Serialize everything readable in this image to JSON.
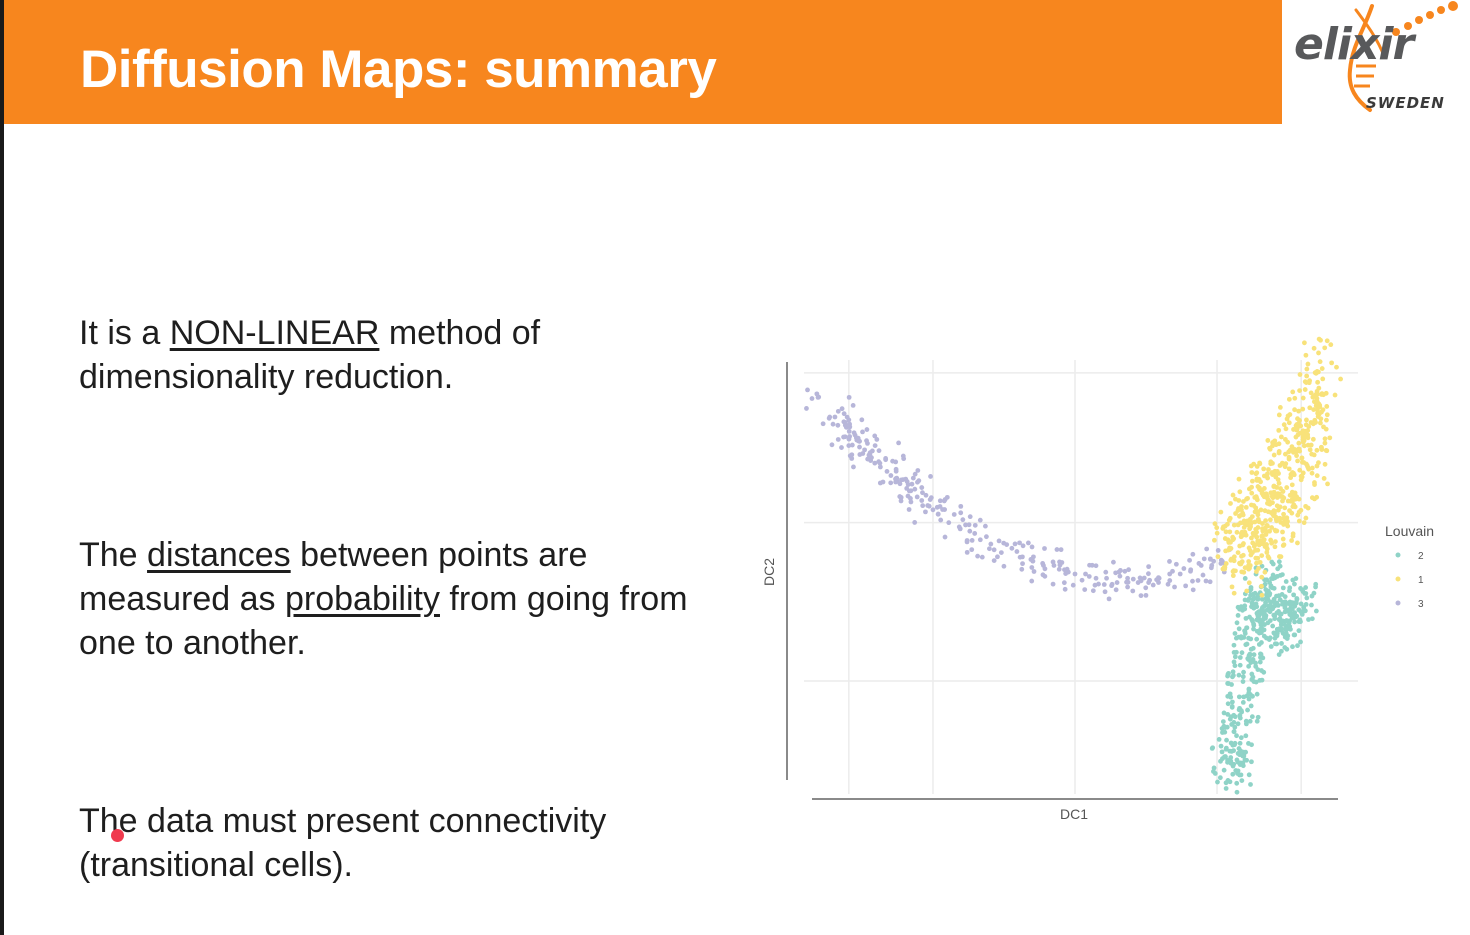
{
  "slide": {
    "title": "Diffusion Maps: summary",
    "logo": {
      "word": "elixir",
      "sub": "SWEDEN",
      "color": "#f7861e"
    },
    "accent_color": "#f7861e"
  },
  "bullets": [
    {
      "pre": "It is a ",
      "u": "NON-LINEAR",
      "post": " method of dimensionality reduction."
    },
    {
      "pre": "The ",
      "u": "distances",
      "mid": " between points are measured as ",
      "u2": "probability",
      "post": " from going from one to another."
    },
    {
      "text": "The data must present connectivity (transitional cells)."
    }
  ],
  "chart_data": {
    "type": "scatter",
    "title": "",
    "xlabel": "DC1",
    "ylabel": "DC2",
    "xlim": [
      0,
      1
    ],
    "ylim": [
      0,
      1
    ],
    "grid": true,
    "legend": {
      "title": "Louvain",
      "placement": "right",
      "entries": [
        {
          "name": "2",
          "color": "#8fd3c7"
        },
        {
          "name": "1",
          "color": "#f8e27a"
        },
        {
          "name": "3",
          "color": "#b7b6d9"
        }
      ]
    },
    "series": [
      {
        "name": "3",
        "color": "#b7b6d9",
        "approx_count": 290,
        "x": [
          0.0,
          0.04,
          0.05,
          0.06,
          0.07,
          0.07,
          0.08,
          0.09,
          0.1,
          0.11,
          0.12,
          0.13,
          0.14,
          0.15,
          0.16,
          0.17,
          0.18,
          0.19,
          0.2,
          0.21,
          0.22,
          0.23,
          0.24,
          0.26,
          0.28,
          0.3,
          0.32,
          0.34,
          0.36,
          0.38,
          0.4,
          0.42,
          0.44,
          0.46,
          0.48,
          0.5,
          0.52,
          0.54,
          0.56,
          0.58,
          0.6,
          0.62,
          0.64,
          0.66,
          0.68,
          0.7,
          0.72,
          0.74,
          0.76,
          0.78
        ],
        "y": [
          0.91,
          0.85,
          0.88,
          0.82,
          0.86,
          0.8,
          0.83,
          0.81,
          0.79,
          0.78,
          0.8,
          0.75,
          0.77,
          0.73,
          0.74,
          0.72,
          0.7,
          0.71,
          0.68,
          0.69,
          0.66,
          0.65,
          0.64,
          0.62,
          0.61,
          0.6,
          0.58,
          0.57,
          0.55,
          0.56,
          0.54,
          0.53,
          0.52,
          0.52,
          0.51,
          0.5,
          0.5,
          0.49,
          0.49,
          0.48,
          0.49,
          0.48,
          0.48,
          0.49,
          0.5,
          0.5,
          0.51,
          0.52,
          0.52,
          0.53
        ]
      },
      {
        "name": "1",
        "color": "#f8e27a",
        "approx_count": 520,
        "x": [
          0.8,
          0.81,
          0.82,
          0.83,
          0.84,
          0.85,
          0.86,
          0.87,
          0.88,
          0.89,
          0.9,
          0.91,
          0.92,
          0.93,
          0.94,
          0.95,
          0.96,
          0.97
        ],
        "y": [
          0.58,
          0.55,
          0.62,
          0.52,
          0.66,
          0.57,
          0.7,
          0.6,
          0.74,
          0.63,
          0.78,
          0.67,
          0.82,
          0.72,
          0.86,
          0.78,
          0.91,
          0.98
        ]
      },
      {
        "name": "2",
        "color": "#8fd3c7",
        "approx_count": 450,
        "x": [
          0.79,
          0.8,
          0.81,
          0.81,
          0.82,
          0.82,
          0.83,
          0.83,
          0.84,
          0.84,
          0.85,
          0.86,
          0.87,
          0.88,
          0.89,
          0.9,
          0.91,
          0.92,
          0.93
        ],
        "y": [
          0.06,
          0.1,
          0.04,
          0.15,
          0.2,
          0.26,
          0.3,
          0.35,
          0.38,
          0.42,
          0.45,
          0.4,
          0.48,
          0.36,
          0.44,
          0.38,
          0.42,
          0.4,
          0.43
        ]
      }
    ]
  }
}
